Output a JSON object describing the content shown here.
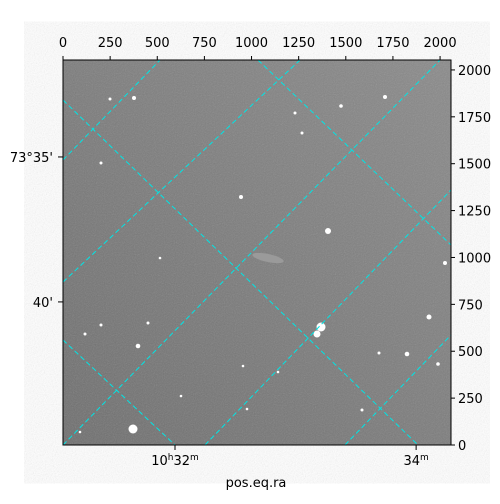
{
  "chart_data": {
    "type": "image",
    "xlabel": "pos.eq.ra",
    "xlim": [
      0,
      2058
    ],
    "ylim": [
      0,
      2053
    ],
    "xticks": [
      0,
      250,
      500,
      750,
      1000,
      1250,
      1500,
      1750,
      2000
    ],
    "yticks": [
      0,
      250,
      500,
      750,
      1000,
      1250,
      1500,
      1750,
      2000
    ],
    "ra_ticks": [
      {
        "value": 594,
        "parts": [
          "10",
          "h",
          "32",
          "m"
        ]
      },
      {
        "value": 1873,
        "parts": [
          "34",
          "m"
        ]
      }
    ],
    "dec_ticks": [
      {
        "value": 1536,
        "label": "73°35'"
      },
      {
        "value": 763,
        "label": "40'"
      }
    ]
  }
}
